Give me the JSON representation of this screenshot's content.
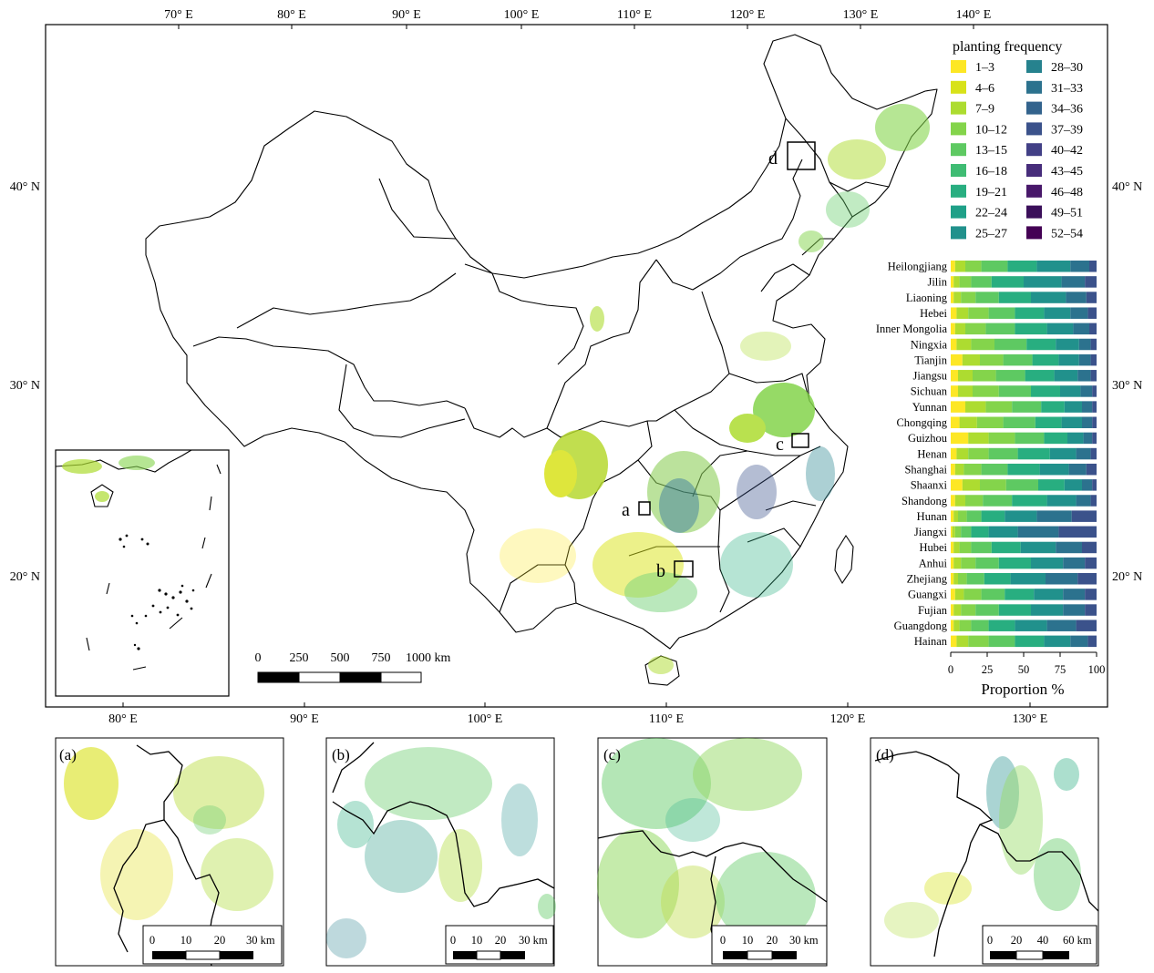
{
  "map": {
    "top_lon_labels": [
      "70° E",
      "80° E",
      "90° E",
      "100° E",
      "110° E",
      "120° E",
      "130° E",
      "140° E"
    ],
    "bottom_lon_labels": [
      "80° E",
      "90° E",
      "100° E",
      "110° E",
      "120° E",
      "130° E"
    ],
    "left_lat_labels": [
      "40° N",
      "30° N",
      "20° N"
    ],
    "right_lat_labels": [
      "40° N",
      "30° N",
      "20° N"
    ],
    "scalebar": {
      "ticks": [
        "0",
        "250",
        "500",
        "750",
        "1000 km"
      ]
    },
    "boxes": [
      "a",
      "b",
      "c",
      "d"
    ]
  },
  "legend": {
    "title": "planting frequency",
    "items": [
      {
        "label": "1–3",
        "color": "#fde725"
      },
      {
        "label": "4–6",
        "color": "#d8e219"
      },
      {
        "label": "7–9",
        "color": "#addc30"
      },
      {
        "label": "10–12",
        "color": "#84d44b"
      },
      {
        "label": "13–15",
        "color": "#5ec962"
      },
      {
        "label": "16–18",
        "color": "#3fbc73"
      },
      {
        "label": "19–21",
        "color": "#28ae80"
      },
      {
        "label": "22–24",
        "color": "#1fa088"
      },
      {
        "label": "25–27",
        "color": "#21918c"
      },
      {
        "label": "28–30",
        "color": "#26828e"
      },
      {
        "label": "31–33",
        "color": "#2c728e"
      },
      {
        "label": "34–36",
        "color": "#33638d"
      },
      {
        "label": "37–39",
        "color": "#3b528b"
      },
      {
        "label": "40–42",
        "color": "#424086"
      },
      {
        "label": "43–45",
        "color": "#472d7b"
      },
      {
        "label": "46–48",
        "color": "#48186a"
      },
      {
        "label": "49–51",
        "color": "#3b0f5a"
      },
      {
        "label": "52–54",
        "color": "#440154"
      }
    ]
  },
  "chart_data": {
    "type": "bar",
    "orientation": "horizontal-stacked",
    "xlabel": "Proportion %",
    "xlim": [
      0,
      100
    ],
    "xticks": [
      "0",
      "25",
      "50",
      "75",
      "100"
    ],
    "categories": [
      "Heilongjiang",
      "Jilin",
      "Liaoning",
      "Hebei",
      "Inner Mongolia",
      "Ningxia",
      "Tianjin",
      "Jiangsu",
      "Sichuan",
      "Yunnan",
      "Chongqing",
      "Guizhou",
      "Henan",
      "Shanghai",
      "Shaanxi",
      "Shandong",
      "Hunan",
      "Jiangxi",
      "Hubei",
      "Anhui",
      "Zhejiang",
      "Guangxi",
      "Fujian",
      "Guangdong",
      "Hainan"
    ],
    "segments": [
      [
        3,
        7,
        11,
        18,
        20,
        23,
        13,
        5
      ],
      [
        2,
        4,
        8,
        14,
        22,
        26,
        16,
        8
      ],
      [
        2,
        5,
        10,
        16,
        22,
        24,
        14,
        7
      ],
      [
        4,
        8,
        14,
        18,
        20,
        18,
        12,
        6
      ],
      [
        3,
        7,
        14,
        20,
        22,
        18,
        11,
        5
      ],
      [
        4,
        10,
        16,
        22,
        20,
        16,
        8,
        4
      ],
      [
        8,
        12,
        16,
        20,
        18,
        14,
        8,
        4
      ],
      [
        5,
        10,
        16,
        20,
        20,
        16,
        9,
        4
      ],
      [
        5,
        10,
        18,
        22,
        20,
        14,
        8,
        3
      ],
      [
        10,
        14,
        18,
        20,
        16,
        12,
        7,
        3
      ],
      [
        6,
        12,
        18,
        22,
        18,
        14,
        7,
        3
      ],
      [
        12,
        14,
        18,
        20,
        16,
        11,
        6,
        3
      ],
      [
        4,
        8,
        14,
        20,
        22,
        18,
        10,
        4
      ],
      [
        3,
        6,
        12,
        18,
        22,
        20,
        12,
        7
      ],
      [
        8,
        12,
        18,
        22,
        18,
        12,
        7,
        3
      ],
      [
        3,
        7,
        12,
        20,
        24,
        20,
        10,
        4
      ],
      [
        2,
        3,
        6,
        10,
        16,
        22,
        24,
        17
      ],
      [
        1,
        2,
        4,
        7,
        12,
        20,
        28,
        26
      ],
      [
        2,
        4,
        8,
        14,
        20,
        24,
        18,
        10
      ],
      [
        2,
        5,
        10,
        16,
        22,
        22,
        15,
        8
      ],
      [
        2,
        3,
        6,
        12,
        18,
        24,
        22,
        13
      ],
      [
        3,
        6,
        12,
        16,
        20,
        20,
        15,
        8
      ],
      [
        2,
        5,
        10,
        16,
        22,
        22,
        15,
        8
      ],
      [
        2,
        4,
        8,
        12,
        18,
        22,
        20,
        14
      ],
      [
        4,
        8,
        14,
        18,
        20,
        18,
        12,
        6
      ]
    ],
    "segment_colors": [
      "#fde725",
      "#addc30",
      "#84d44b",
      "#5ec962",
      "#28ae80",
      "#21918c",
      "#2c728e",
      "#3b528b"
    ]
  },
  "insets": [
    {
      "label": "(a)",
      "scale_ticks": [
        "0",
        "10",
        "20",
        "30 km"
      ]
    },
    {
      "label": "(b)",
      "scale_ticks": [
        "0",
        "10",
        "20",
        "30 km"
      ]
    },
    {
      "label": "(c)",
      "scale_ticks": [
        "0",
        "10",
        "20",
        "30 km"
      ]
    },
    {
      "label": "(d)",
      "scale_ticks": [
        "0",
        "20",
        "40",
        "60 km"
      ]
    }
  ]
}
